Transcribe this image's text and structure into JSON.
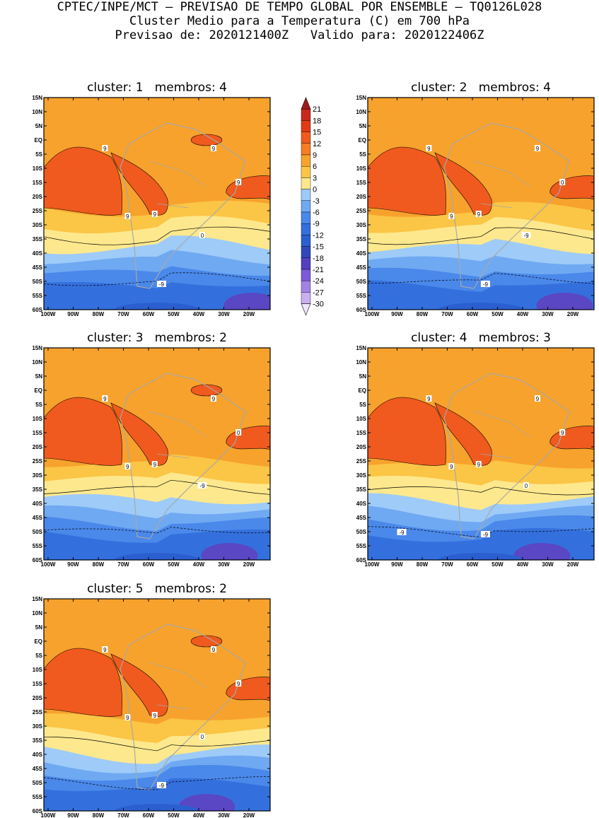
{
  "header": {
    "line1": "CPTEC/INPE/MCT – PREVISAO DE TEMPO GLOBAL POR ENSEMBLE – TQ0126L028",
    "line2": "Cluster Medio para a Temperatura (C) em 700 hPa",
    "line3": "Previsao de: 2020121400Z   Valido para: 2020122406Z"
  },
  "lat_ticks": [
    "15N",
    "10N",
    "5N",
    "EQ",
    "5S",
    "10S",
    "15S",
    "20S",
    "25S",
    "30S",
    "35S",
    "40S",
    "45S",
    "50S",
    "55S",
    "60S"
  ],
  "lon_ticks": [
    "100W",
    "90W",
    "80W",
    "70W",
    "60W",
    "50W",
    "40W",
    "30W",
    "20W"
  ],
  "panels": [
    {
      "title": "cluster: 1   membros: 4",
      "labels": [
        "9",
        "9",
        "9",
        "9",
        "9",
        "0",
        "-9"
      ]
    },
    {
      "title": "cluster: 2   membros: 4",
      "labels": [
        "9",
        "9",
        "9",
        "9",
        "0",
        "-9",
        "-9"
      ]
    },
    {
      "title": "cluster: 3   membros: 2",
      "labels": [
        "9",
        "9",
        "9",
        "9",
        "0",
        "-9"
      ]
    },
    {
      "title": "cluster: 4   membros: 3",
      "labels": [
        "9",
        "9",
        "9",
        "9",
        "9",
        "0",
        "-9",
        "-9"
      ]
    },
    {
      "title": "cluster: 5   membros: 2",
      "labels": [
        "9",
        "9",
        "9",
        "9",
        "9",
        "0",
        "-9"
      ]
    }
  ],
  "colorbar": {
    "labels": [
      "21",
      "18",
      "15",
      "12",
      "9",
      "6",
      "3",
      "0",
      "-3",
      "-6",
      "-9",
      "-12",
      "-15",
      "-18",
      "-21",
      "-24",
      "-27",
      "-30"
    ],
    "colors": [
      "#a01c1c",
      "#c62a1a",
      "#e23a16",
      "#f05a1e",
      "#f57d22",
      "#f7a22c",
      "#fbc545",
      "#fde88d",
      "#9ecbf8",
      "#6fa9f2",
      "#4a88ea",
      "#3470dd",
      "#2b5fd0",
      "#3148bb",
      "#5440bf",
      "#7a5ad6",
      "#a382e4",
      "#c8b0f0",
      "#f0e6fb"
    ]
  }
}
